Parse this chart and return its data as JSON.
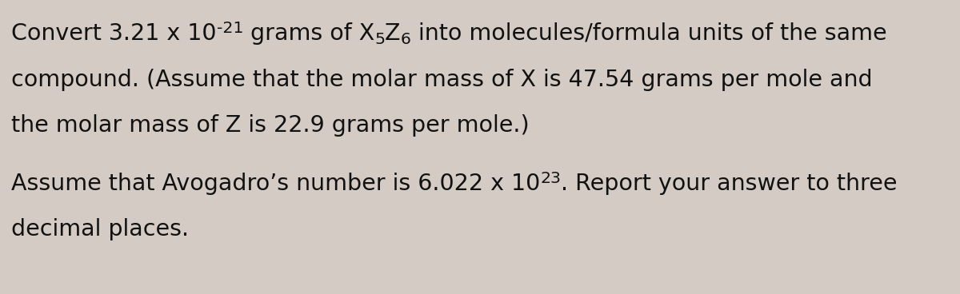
{
  "background_color": "#d4ccc4",
  "font_size": 20.5,
  "font_family": "DejaVu Sans",
  "text_color": "#111111",
  "figsize": [
    12.0,
    3.68
  ],
  "dpi": 100,
  "line1_normal1": "Convert 3.21 x 10",
  "line1_sup": "-21",
  "line1_normal2": " grams of X",
  "line1_sub1": "5",
  "line1_normal3": "Z",
  "line1_sub2": "6",
  "line1_normal4": " into molecules/formula units of the same",
  "line2": "compound. (Assume that the molar mass of X is 47.54 grams per mole and",
  "line3": "the molar mass of Z is 22.9 grams per mole.)",
  "line4_normal1": "Assume that Avogadro’s number is 6.022 x 10",
  "line4_sup": "23",
  "line4_normal2": ". Report your answer to three",
  "line5": "decimal places."
}
